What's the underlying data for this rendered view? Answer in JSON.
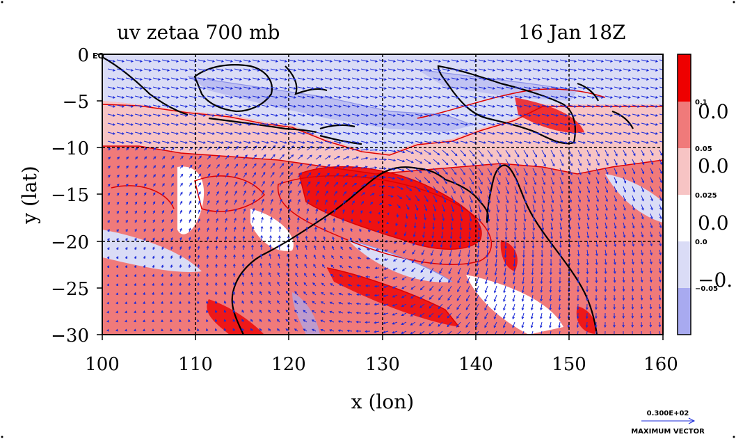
{
  "chart_data": {
    "type": "heatmap",
    "title": "uv zetaa 700 mb",
    "timestamp": "16 Jan 18Z",
    "xlabel": "x (lon)",
    "ylabel": "y (lat)",
    "xlim": [
      100,
      160
    ],
    "ylim": [
      -30,
      0
    ],
    "x_ticks": [
      "100",
      "110",
      "120",
      "130",
      "140",
      "150",
      "160"
    ],
    "y_ticks": [
      "0",
      "−5",
      "−10",
      "−15",
      "−20",
      "−25",
      "−30"
    ],
    "y_top_suffix": "EQ",
    "grid": true,
    "colorbar": {
      "levels": [
        "0.1",
        "0.05",
        "0.025",
        "0.0",
        "−0.05"
      ],
      "big_labels": [
        "0.0",
        "0.0",
        "0.0",
        "−0."
      ],
      "colors": [
        "#ee0000",
        "#f07a7a",
        "#f7c4c4",
        "#ffffff",
        "#dadcf6",
        "#a8aaf0"
      ]
    },
    "vector_legend": {
      "value": "0.300E+02",
      "label": "MAXIMUM VECTOR"
    },
    "colors": {
      "strong_pos": "#ee0000",
      "pos": "#f07a7a",
      "weak_pos": "#f7c4c4",
      "zero": "#ffffff",
      "weak_neg": "#dadcf6",
      "neg": "#a8aaf0",
      "contour": "#dd0000",
      "neg_contour": "#8a8fe8",
      "vector": "#1a2ad8",
      "coast": "#000000"
    }
  }
}
